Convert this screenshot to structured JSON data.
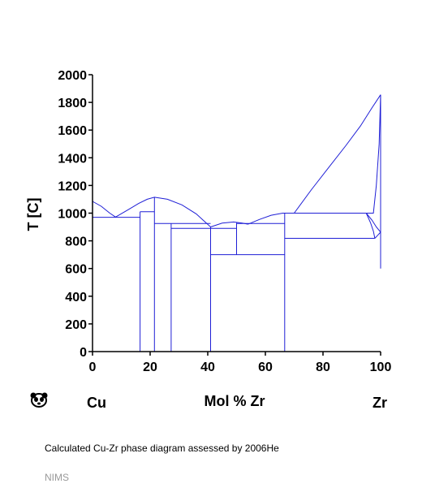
{
  "chart_data": {
    "type": "phase-diagram",
    "xlabel": "Mol % Zr",
    "ylabel": "T [C]",
    "xlim": [
      0,
      100
    ],
    "ylim": [
      0,
      2000
    ],
    "x_ticks": [
      0,
      20,
      40,
      60,
      80,
      100
    ],
    "y_ticks": [
      0,
      200,
      400,
      600,
      800,
      1000,
      1200,
      1400,
      1600,
      1800,
      2000
    ],
    "grid": false,
    "line_color": "#1f1fd6",
    "element_left": "Cu",
    "element_right": "Zr",
    "boundaries": [
      {
        "name": "liquidus-cu",
        "points": [
          [
            0,
            1085
          ],
          [
            3,
            1050
          ],
          [
            6,
            1000
          ],
          [
            8,
            972
          ]
        ]
      },
      {
        "name": "liquidus-mid",
        "points": [
          [
            8,
            972
          ],
          [
            12,
            1020
          ],
          [
            16,
            1070
          ],
          [
            19,
            1100
          ],
          [
            21.5,
            1115
          ],
          [
            26,
            1100
          ],
          [
            31,
            1060
          ],
          [
            36,
            995
          ],
          [
            41,
            900
          ]
        ]
      },
      {
        "name": "liquidus-low",
        "points": [
          [
            41,
            900
          ],
          [
            45,
            928
          ],
          [
            49,
            936
          ],
          [
            52,
            928
          ],
          [
            54,
            920
          ]
        ]
      },
      {
        "name": "liquidus-zr-side",
        "points": [
          [
            54,
            920
          ],
          [
            58,
            955
          ],
          [
            62,
            985
          ],
          [
            66,
            1000
          ],
          [
            70,
            1000
          ]
        ]
      },
      {
        "name": "liquidus-zr",
        "points": [
          [
            70,
            1000
          ],
          [
            76,
            1170
          ],
          [
            82,
            1330
          ],
          [
            88,
            1490
          ],
          [
            93,
            1630
          ],
          [
            97,
            1760
          ],
          [
            100,
            1855
          ]
        ]
      },
      {
        "name": "solvus-cu",
        "points": [
          [
            0,
            970
          ],
          [
            0,
            600
          ]
        ]
      },
      {
        "name": "eutectic-cu",
        "points": [
          [
            0,
            970
          ],
          [
            16.5,
            970
          ]
        ]
      },
      {
        "name": "compound-16",
        "points": [
          [
            16.5,
            0
          ],
          [
            16.5,
            1010
          ]
        ]
      },
      {
        "name": "peritectic-16",
        "points": [
          [
            16.5,
            1010
          ],
          [
            21.5,
            1010
          ]
        ]
      },
      {
        "name": "compound-21",
        "points": [
          [
            21.5,
            0
          ],
          [
            21.5,
            1115
          ]
        ]
      },
      {
        "name": "eutectic-21-28",
        "points": [
          [
            21.5,
            925
          ],
          [
            41,
            925
          ]
        ]
      },
      {
        "name": "compound-27",
        "points": [
          [
            27.3,
            0
          ],
          [
            27.3,
            925
          ]
        ]
      },
      {
        "name": "eutectic-27-41",
        "points": [
          [
            27.3,
            890
          ],
          [
            41,
            890
          ]
        ]
      },
      {
        "name": "compound-41",
        "points": [
          [
            41,
            0
          ],
          [
            41,
            900
          ]
        ]
      },
      {
        "name": "eutectic-41-50",
        "points": [
          [
            41,
            890
          ],
          [
            50,
            890
          ]
        ]
      },
      {
        "name": "compound-50",
        "points": [
          [
            50,
            700
          ],
          [
            50,
            930
          ]
        ]
      },
      {
        "name": "eutectoid-50",
        "points": [
          [
            41,
            700
          ],
          [
            66.7,
            700
          ]
        ]
      },
      {
        "name": "eutectic-50-66",
        "points": [
          [
            50,
            925
          ],
          [
            66.7,
            925
          ]
        ]
      },
      {
        "name": "compound-66",
        "points": [
          [
            66.7,
            0
          ],
          [
            66.7,
            1000
          ]
        ]
      },
      {
        "name": "peritectic-66",
        "points": [
          [
            66.7,
            1000
          ],
          [
            95,
            1000
          ]
        ]
      },
      {
        "name": "solidus-bcc",
        "points": [
          [
            95,
            1000
          ],
          [
            97,
            950
          ],
          [
            98.5,
            900
          ],
          [
            100,
            863
          ]
        ]
      },
      {
        "name": "solvus-zr",
        "points": [
          [
            95,
            1000
          ],
          [
            96.5,
            930
          ],
          [
            97.5,
            870
          ],
          [
            98,
            818
          ]
        ]
      },
      {
        "name": "eutectoid-zr",
        "points": [
          [
            66.7,
            818
          ],
          [
            98,
            818
          ]
        ]
      },
      {
        "name": "hcp-boundary",
        "points": [
          [
            98,
            818
          ],
          [
            99,
            840
          ],
          [
            100,
            863
          ]
        ]
      },
      {
        "name": "zr-edge",
        "points": [
          [
            100,
            1855
          ],
          [
            100,
            600
          ]
        ]
      },
      {
        "name": "solidus-zr",
        "points": [
          [
            100,
            1855
          ],
          [
            99.5,
            1500
          ],
          [
            98.5,
            1200
          ],
          [
            97.5,
            1000
          ],
          [
            95,
            1000
          ]
        ]
      }
    ]
  },
  "caption": "Calculated Cu-Zr phase diagram assessed by 2006He",
  "source": "NIMS",
  "logo_icon": "nims-panda-icon"
}
